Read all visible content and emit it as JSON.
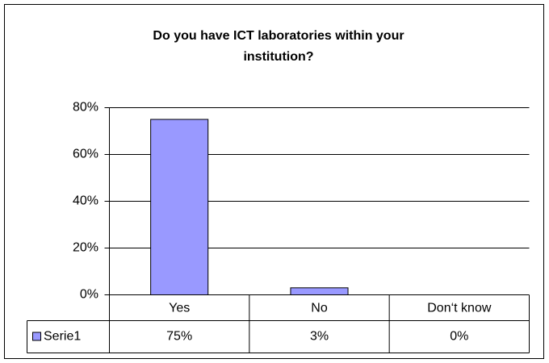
{
  "chart_data": {
    "type": "bar",
    "title": [
      "Do you have ICT laboratories within your",
      "institution?"
    ],
    "categories": [
      "Yes",
      "No",
      "Don‘t know"
    ],
    "series": [
      {
        "name": "Serie1",
        "color": "#9999ff",
        "values": [
          75,
          3,
          0
        ],
        "value_labels": [
          "75%",
          "3%",
          "0%"
        ]
      }
    ],
    "ylim": [
      0,
      80
    ],
    "yticks": [
      {
        "value": 0,
        "label": "0%"
      },
      {
        "value": 20,
        "label": "20%"
      },
      {
        "value": 40,
        "label": "40%"
      },
      {
        "value": 60,
        "label": "60%"
      },
      {
        "value": 80,
        "label": "80%"
      }
    ],
    "grid": true,
    "data_table": true
  }
}
